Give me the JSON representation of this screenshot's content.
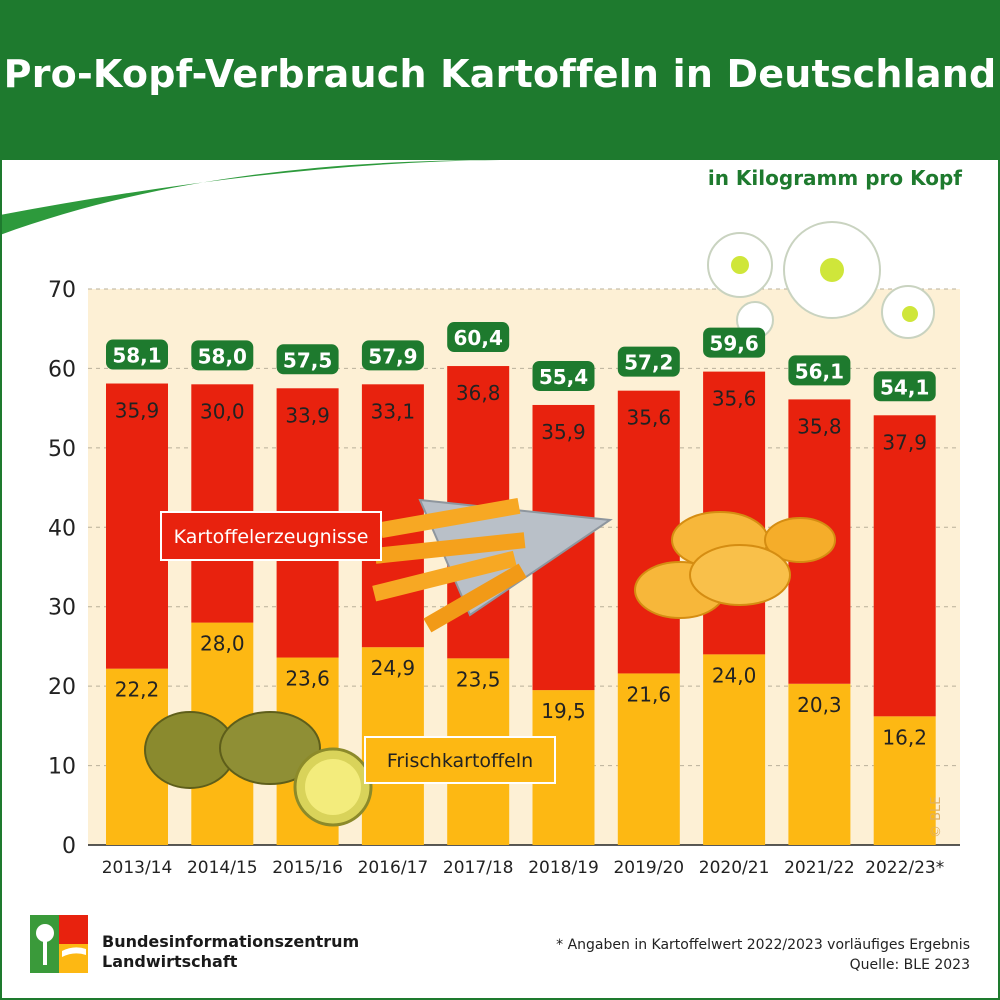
{
  "title": "Pro-Kopf-Verbrauch Kartoffeln in Deutschland",
  "unit": "in Kilogramm pro Kopf",
  "footnote": "* Angaben in Kartoffelwert 2022/2023 vorläufiges Ergebnis",
  "source": "Quelle: BLE 2023",
  "copyright": "© BLE",
  "publisher": {
    "line1": "Bundesinformationszentrum",
    "line2": "Landwirtschaft"
  },
  "colors": {
    "header_green": "#1e7a2e",
    "bar_red": "#e8220e",
    "bar_yellow": "#fdb813",
    "plot_background": "#fdf0d5"
  },
  "chart_data": {
    "type": "bar",
    "stacked": true,
    "categories": [
      "2013/14",
      "2014/15",
      "2015/16",
      "2016/17",
      "2017/18",
      "2018/19",
      "2019/20",
      "2020/21",
      "2021/22",
      "2022/23*"
    ],
    "series": [
      {
        "name": "Frischkartoffeln",
        "color": "#fdb813",
        "values": [
          22.2,
          28.0,
          23.6,
          24.9,
          23.5,
          19.5,
          21.6,
          24.0,
          20.3,
          16.2
        ],
        "labels": [
          "22,2",
          "28,0",
          "23,6",
          "24,9",
          "23,5",
          "19,5",
          "21,6",
          "24,0",
          "20,3",
          "16,2"
        ]
      },
      {
        "name": "Kartoffelerzeugnisse",
        "color": "#e8220e",
        "values": [
          35.9,
          30.0,
          33.9,
          33.1,
          36.8,
          35.9,
          35.6,
          35.6,
          35.8,
          37.9
        ],
        "labels": [
          "35,9",
          "30,0",
          "33,9",
          "33,1",
          "36,8",
          "35,9",
          "35,6",
          "35,6",
          "35,8",
          "37,9"
        ]
      }
    ],
    "totals": [
      58.1,
      58.0,
      57.5,
      57.9,
      60.4,
      55.4,
      57.2,
      59.6,
      56.1,
      54.1
    ],
    "total_labels": [
      "58,1",
      "58,0",
      "57,5",
      "57,9",
      "60,4",
      "55,4",
      "57,2",
      "59,6",
      "56,1",
      "54,1"
    ],
    "yticks": [
      "0",
      "10",
      "20",
      "30",
      "40",
      "50",
      "60",
      "70"
    ],
    "ylim": [
      0,
      70
    ],
    "grid": true,
    "gridlines": "dashed"
  }
}
